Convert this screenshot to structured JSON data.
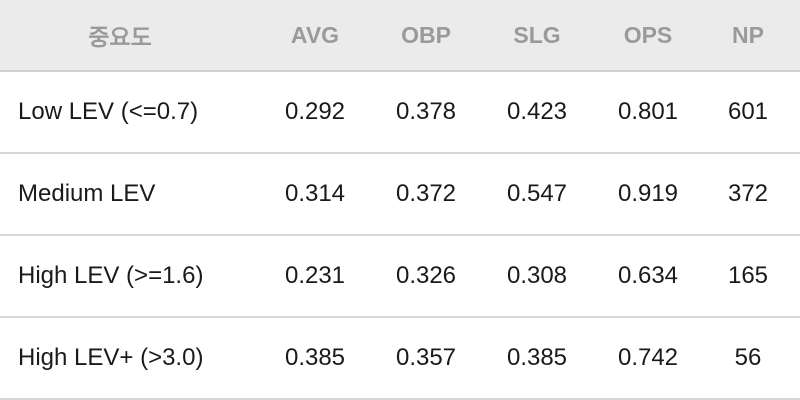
{
  "table": {
    "header": [
      "중요도",
      "AVG",
      "OBP",
      "SLG",
      "OPS",
      "NP"
    ],
    "rows": [
      [
        "Low LEV (<=0.7)",
        "0.292",
        "0.378",
        "0.423",
        "0.801",
        "601"
      ],
      [
        "Medium LEV",
        "0.314",
        "0.372",
        "0.547",
        "0.919",
        "372"
      ],
      [
        "High LEV (>=1.6)",
        "0.231",
        "0.326",
        "0.308",
        "0.634",
        "165"
      ],
      [
        "High LEV+ (>3.0)",
        "0.385",
        "0.357",
        "0.385",
        "0.742",
        "56"
      ]
    ]
  }
}
